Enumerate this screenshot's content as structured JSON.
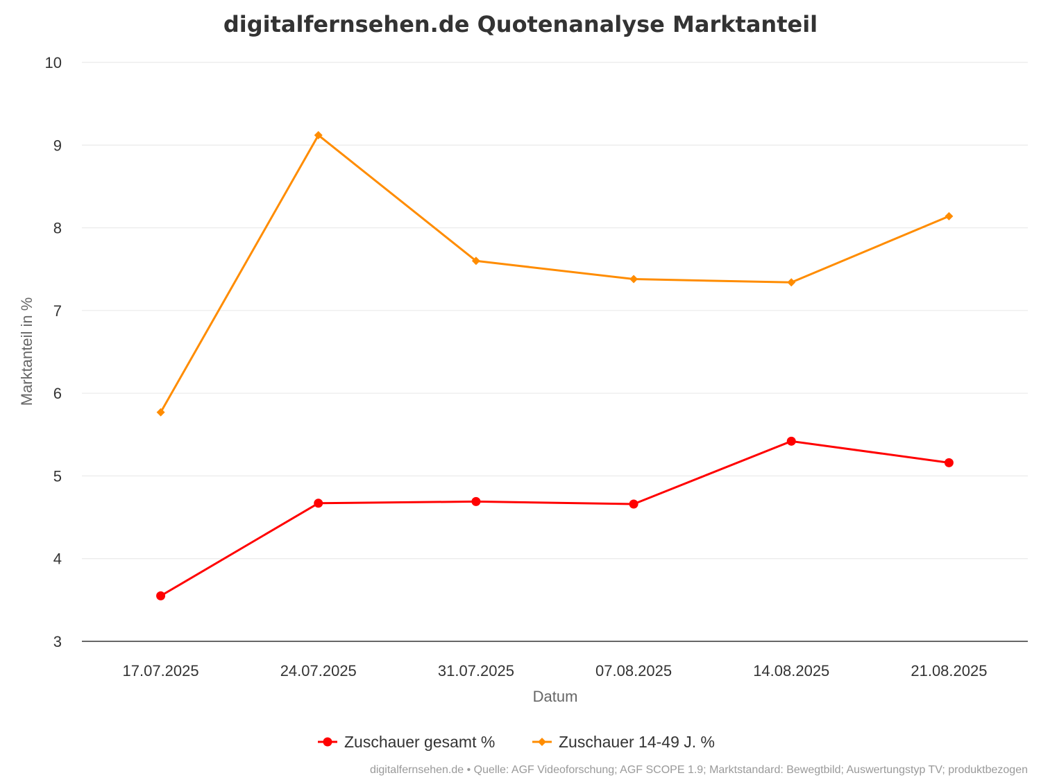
{
  "chart_data": {
    "type": "line",
    "title": "digitalfernsehen.de Quotenanalyse Marktanteil",
    "xlabel": "Datum",
    "ylabel": "Marktanteil in %",
    "ylim": [
      3,
      10
    ],
    "yticks": [
      3,
      4,
      5,
      6,
      7,
      8,
      9,
      10
    ],
    "grid": true,
    "legend_position": "bottom",
    "categories": [
      "17.07.2025",
      "24.07.2025",
      "31.07.2025",
      "07.08.2025",
      "14.08.2025",
      "21.08.2025"
    ],
    "series": [
      {
        "name": "Zuschauer gesamt %",
        "color": "#ff0000",
        "marker": "circle",
        "values": [
          3.55,
          4.67,
          4.69,
          4.66,
          5.42,
          5.16
        ]
      },
      {
        "name": "Zuschauer 14-49 J. %",
        "color": "#ff8c00",
        "marker": "diamond",
        "values": [
          5.77,
          9.12,
          7.6,
          7.38,
          7.34,
          8.14
        ]
      }
    ]
  },
  "credits": "digitalfernsehen.de • Quelle: AGF Videoforschung; AGF SCOPE 1.9; Marktstandard: Bewegtbild; Auswertungstyp TV; produktbezogen"
}
